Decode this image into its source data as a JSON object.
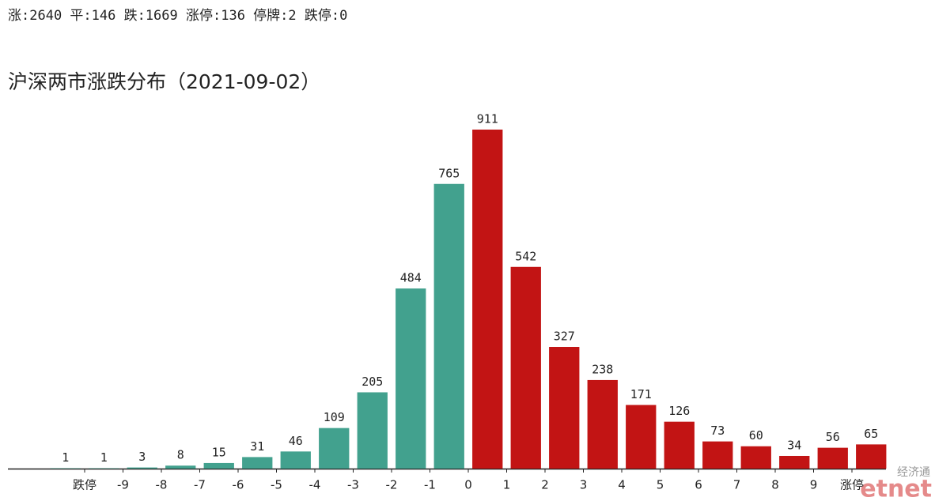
{
  "chart_data": {
    "type": "histogram",
    "subtitle": "涨:2640 平:146 跌:1669 涨停:136 停牌:2 跌停:0",
    "title": "沪深两市涨跌分布（2021-09-02）",
    "bins": [
      0,
      1,
      2,
      3,
      4,
      5,
      6,
      7,
      8,
      9,
      10,
      11,
      12,
      13,
      14,
      15,
      16,
      17,
      18,
      19,
      20,
      21,
      22
    ],
    "values": [
      1,
      1,
      3,
      8,
      15,
      31,
      46,
      109,
      205,
      484,
      765,
      911,
      542,
      327,
      238,
      171,
      126,
      73,
      60,
      34,
      56,
      65
    ],
    "colors": [
      "#42a18e",
      "#42a18e",
      "#42a18e",
      "#42a18e",
      "#42a18e",
      "#42a18e",
      "#42a18e",
      "#42a18e",
      "#42a18e",
      "#42a18e",
      "#42a18e",
      "#c21414",
      "#c21414",
      "#c21414",
      "#c21414",
      "#c21414",
      "#c21414",
      "#c21414",
      "#c21414",
      "#c21414",
      "#c21414",
      "#c21414"
    ],
    "xlim": [
      0,
      22
    ],
    "xticks": [
      {
        "value": 1,
        "label": "跌停"
      },
      {
        "value": 2,
        "label": "-9"
      },
      {
        "value": 3,
        "label": "-8"
      },
      {
        "value": 4,
        "label": "-7"
      },
      {
        "value": 5,
        "label": "-6"
      },
      {
        "value": 6,
        "label": "-5"
      },
      {
        "value": 7,
        "label": "-4"
      },
      {
        "value": 8,
        "label": "-3"
      },
      {
        "value": 9,
        "label": "-2"
      },
      {
        "value": 10,
        "label": "-1"
      },
      {
        "value": 11,
        "label": "0"
      },
      {
        "value": 12,
        "label": "1"
      },
      {
        "value": 13,
        "label": "2"
      },
      {
        "value": 14,
        "label": "3"
      },
      {
        "value": 15,
        "label": "4"
      },
      {
        "value": 16,
        "label": "5"
      },
      {
        "value": 17,
        "label": "6"
      },
      {
        "value": 18,
        "label": "7"
      },
      {
        "value": 19,
        "label": "8"
      },
      {
        "value": 20,
        "label": "9"
      },
      {
        "value": 21,
        "label": "涨停"
      }
    ],
    "annotations": [
      "经济通",
      "etnet"
    ]
  }
}
